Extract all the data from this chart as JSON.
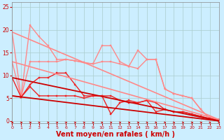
{
  "bg_color": "#cceeff",
  "grid_color": "#aacccc",
  "xlabel": "Vent moyen/en rafales ( km/h )",
  "xlabel_color": "#cc0000",
  "xlabel_fontsize": 7,
  "xticks": [
    0,
    1,
    2,
    3,
    4,
    5,
    6,
    7,
    8,
    9,
    10,
    11,
    12,
    13,
    14,
    15,
    16,
    17,
    18,
    19,
    20,
    21,
    22,
    23
  ],
  "yticks": [
    0,
    5,
    10,
    15,
    20,
    25
  ],
  "ylim": [
    -0.5,
    26
  ],
  "xlim": [
    0,
    23
  ],
  "series": [
    {
      "label": "pink_upper_jagged",
      "x": [
        0,
        1,
        2,
        3,
        4,
        5,
        6,
        7,
        8,
        9,
        10,
        11,
        12,
        13,
        14,
        15,
        16,
        17,
        18,
        19,
        20,
        21,
        22,
        23
      ],
      "y": [
        19.5,
        5.2,
        21.0,
        18.5,
        16.5,
        13.5,
        13.5,
        13.2,
        12.8,
        12.5,
        16.5,
        16.5,
        13.0,
        12.0,
        15.5,
        13.5,
        13.5,
        7.0,
        6.0,
        5.5,
        5.0,
        2.5,
        0.5,
        0.3
      ],
      "color": "#ff8888",
      "marker": "s",
      "markersize": 2,
      "linewidth": 1.0
    },
    {
      "label": "pink_lower_jagged",
      "x": [
        0,
        1,
        2,
        3,
        4,
        5,
        6,
        7,
        8,
        9,
        10,
        11,
        12,
        13,
        14,
        15,
        16,
        17,
        18,
        19,
        20,
        21,
        22,
        23
      ],
      "y": [
        13.0,
        5.2,
        13.0,
        13.0,
        13.0,
        13.0,
        13.5,
        13.2,
        12.8,
        12.5,
        13.0,
        13.0,
        12.5,
        12.0,
        11.5,
        13.5,
        13.5,
        7.0,
        6.0,
        5.5,
        5.0,
        2.5,
        0.5,
        0.3
      ],
      "color": "#ff8888",
      "marker": "s",
      "markersize": 2,
      "linewidth": 1.0
    },
    {
      "label": "red_upper_jagged",
      "x": [
        0,
        1,
        2,
        3,
        4,
        5,
        6,
        7,
        8,
        9,
        10,
        11,
        12,
        13,
        14,
        15,
        16,
        17,
        18,
        19,
        20,
        21,
        22,
        23
      ],
      "y": [
        9.5,
        5.2,
        8.0,
        9.5,
        9.5,
        10.5,
        10.5,
        8.0,
        5.5,
        5.5,
        5.5,
        1.5,
        4.0,
        4.5,
        4.0,
        4.5,
        2.0,
        2.5,
        2.0,
        2.0,
        1.5,
        1.0,
        0.5,
        0.2
      ],
      "color": "#ee2222",
      "marker": "s",
      "markersize": 2,
      "linewidth": 1.0
    },
    {
      "label": "red_lower_jagged",
      "x": [
        0,
        1,
        2,
        3,
        4,
        5,
        6,
        7,
        8,
        9,
        10,
        11,
        12,
        13,
        14,
        15,
        16,
        17,
        18,
        19,
        20,
        21,
        22,
        23
      ],
      "y": [
        5.5,
        5.2,
        7.5,
        5.5,
        5.5,
        5.5,
        5.5,
        5.5,
        5.0,
        5.5,
        5.5,
        5.5,
        4.5,
        4.0,
        4.0,
        4.5,
        4.0,
        2.5,
        2.0,
        2.0,
        1.5,
        1.0,
        0.5,
        0.2
      ],
      "color": "#ee2222",
      "marker": "s",
      "markersize": 2,
      "linewidth": 1.0
    },
    {
      "label": "pink_trend_upper",
      "x": [
        0,
        23
      ],
      "y": [
        19.5,
        0.3
      ],
      "color": "#ff8888",
      "marker": null,
      "markersize": 0,
      "linewidth": 1.2
    },
    {
      "label": "pink_trend_lower",
      "x": [
        0,
        23
      ],
      "y": [
        13.0,
        0.3
      ],
      "color": "#ff8888",
      "marker": null,
      "markersize": 0,
      "linewidth": 1.2
    },
    {
      "label": "red_trend_upper",
      "x": [
        0,
        23
      ],
      "y": [
        9.5,
        0.0
      ],
      "color": "#cc0000",
      "marker": null,
      "markersize": 0,
      "linewidth": 1.3
    },
    {
      "label": "red_trend_lower",
      "x": [
        0,
        23
      ],
      "y": [
        5.5,
        0.0
      ],
      "color": "#cc0000",
      "marker": null,
      "markersize": 0,
      "linewidth": 1.3
    }
  ],
  "arrows_x": [
    0,
    1,
    2,
    3,
    4,
    5,
    6,
    7,
    8,
    9,
    10,
    11,
    12,
    13,
    14,
    15,
    16,
    17,
    18,
    19,
    20,
    21,
    22,
    23
  ],
  "arrows_angle": [
    0,
    0,
    0,
    15,
    15,
    30,
    30,
    15,
    15,
    15,
    30,
    15,
    15,
    0,
    0,
    -15,
    -30,
    -30,
    -30,
    -15,
    0,
    0,
    -15,
    -15
  ],
  "arrow_color": "#cc0000"
}
